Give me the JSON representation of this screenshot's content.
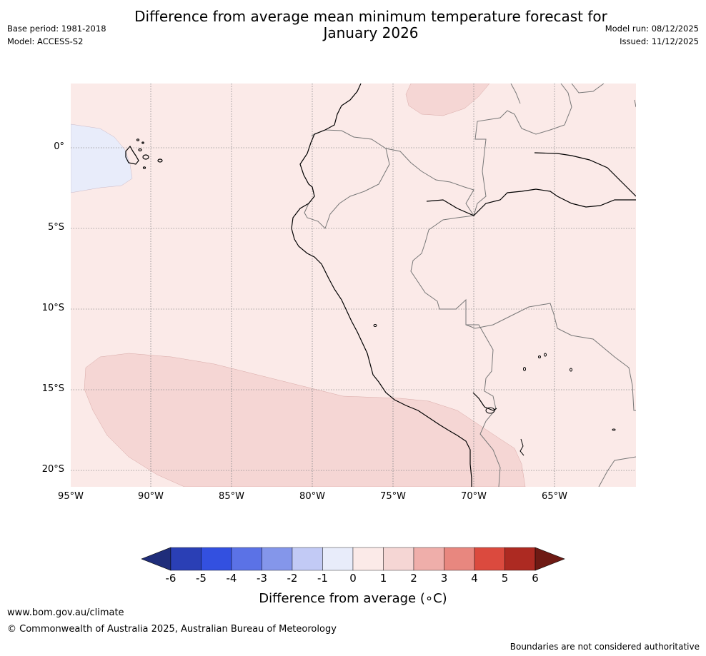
{
  "title_line1": "Difference from average mean minimum temperature forecast for",
  "title_line2": "January 2026",
  "meta_left": {
    "base_period": "Base period: 1981-2018",
    "model": "Model: ACCESS-S2"
  },
  "meta_right": {
    "model_run": "Model run: 08/12/2025",
    "issued": "Issued: 11/12/2025"
  },
  "map": {
    "lat_labels": [
      "0°",
      "5°S",
      "10°S",
      "15°S",
      "20°S"
    ],
    "lon_labels": [
      "95°W",
      "90°W",
      "85°W",
      "80°W",
      "75°W",
      "70°W",
      "65°W"
    ],
    "background_color": "#fbeae8",
    "anomaly_regions": [
      {
        "name": "Galapagos cool area",
        "range": "-1 to 0",
        "color": "#e8ecfa"
      },
      {
        "name": "Southeast Pacific warm area",
        "range": "1 to 2",
        "color": "#f5d6d4"
      },
      {
        "name": "Northern Colombia warm area",
        "range": "1 to 2",
        "color": "#f5d6d4"
      }
    ]
  },
  "colorbar": {
    "ticks": [
      "-6",
      "-5",
      "-4",
      "-3",
      "-2",
      "-1",
      "0",
      "1",
      "2",
      "3",
      "4",
      "5",
      "6"
    ],
    "colors": [
      "#1f2d7a",
      "#2a3fb5",
      "#3350e0",
      "#5b72e6",
      "#8496ea",
      "#c2caf5",
      "#e8ecfa",
      "#fbeae8",
      "#f5d6d4",
      "#efaeaa",
      "#e8877f",
      "#db4a3e",
      "#ad2a22",
      "#6e1a14"
    ],
    "label": "Difference from average (∘C)"
  },
  "footer": {
    "url": "www.bom.gov.au/climate",
    "copyright": "© Commonwealth of Australia 2025, Australian Bureau of Meteorology",
    "disclaimer": "Boundaries are not considered authoritative"
  }
}
